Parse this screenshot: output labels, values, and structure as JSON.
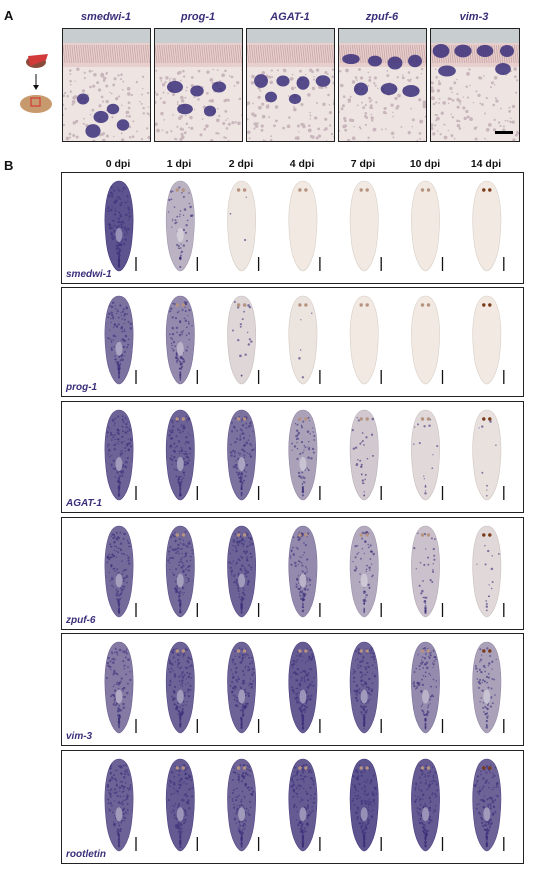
{
  "panel_a": {
    "letter": "A",
    "genes": [
      "smedwi-1",
      "prog-1",
      "AGAT-1",
      "zpuf-6",
      "vim-3"
    ]
  },
  "panel_b": {
    "letter": "B",
    "timepoints": [
      "0 dpi",
      "1 dpi",
      "2 dpi",
      "4 dpi",
      "7 dpi",
      "10 dpi",
      "14 dpi"
    ],
    "rows": [
      {
        "gene": "smedwi-1",
        "intensity": [
          0.95,
          0.35,
          0.02,
          0.0,
          0.0,
          0.0,
          0.0
        ]
      },
      {
        "gene": "prog-1",
        "intensity": [
          0.75,
          0.6,
          0.12,
          0.03,
          0.0,
          0.0,
          0.0
        ]
      },
      {
        "gene": "AGAT-1",
        "intensity": [
          0.85,
          0.85,
          0.75,
          0.45,
          0.2,
          0.1,
          0.05
        ]
      },
      {
        "gene": "zpuf-6",
        "intensity": [
          0.8,
          0.8,
          0.85,
          0.6,
          0.4,
          0.25,
          0.1
        ]
      },
      {
        "gene": "vim-3",
        "intensity": [
          0.7,
          0.85,
          0.85,
          0.9,
          0.85,
          0.6,
          0.45
        ]
      },
      {
        "gene": "rootletin",
        "intensity": [
          0.85,
          0.9,
          0.85,
          0.9,
          0.95,
          0.9,
          0.85
        ]
      }
    ]
  },
  "colors": {
    "stain": "#3a2f7a",
    "tissue_bg": "#eee5e2",
    "unstained_worm": "#f1e9e2",
    "eye": "#7a3a1a"
  }
}
